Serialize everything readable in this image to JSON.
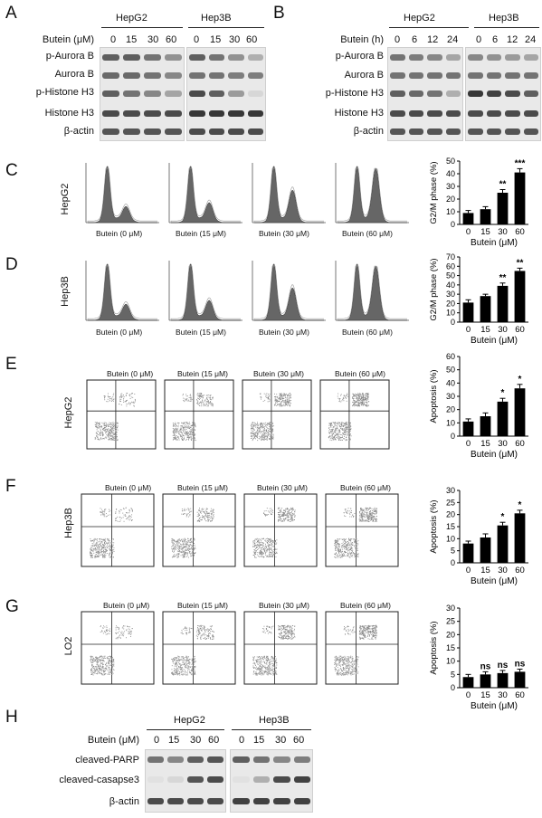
{
  "panels": {
    "A": "A",
    "B": "B",
    "C": "C",
    "D": "D",
    "E": "E",
    "F": "F",
    "G": "G",
    "H": "H"
  },
  "cells": {
    "hepg2": "HepG2",
    "hep3b": "Hep3B",
    "lo2": "LO2"
  },
  "western": {
    "butein_um": "Butein (μM)",
    "butein_h": "Butein (h)",
    "conc": [
      "0",
      "15",
      "30",
      "60"
    ],
    "time": [
      "0",
      "6",
      "12",
      "24"
    ],
    "proteins_ab": [
      "p-Aurora B",
      "Aurora B",
      "p-Histone H3",
      "Histone H3",
      "β-actin"
    ],
    "proteins_h": [
      "cleaved-PARP",
      "cleaved-casapse3",
      "β-actin"
    ]
  },
  "flow": {
    "titles": [
      "Butein (0 μM)",
      "Butein (15 μM)",
      "Butein (30 μM)",
      "Butein (60 μM)"
    ]
  },
  "chart_data": [
    {
      "id": "C",
      "type": "bar",
      "categories": [
        "0",
        "15",
        "30",
        "60"
      ],
      "values": [
        9,
        12,
        25,
        41
      ],
      "errors": [
        2,
        2,
        2.5,
        3
      ],
      "ylabel": "G2/M phase (%)",
      "xlabel": "Butein (μM)",
      "ylim": [
        0,
        50
      ],
      "yticks": [
        "0",
        "10",
        "20",
        "30",
        "40",
        "50"
      ],
      "annotations": [
        "",
        "",
        "**",
        "***"
      ]
    },
    {
      "id": "D",
      "type": "bar",
      "categories": [
        "0",
        "15",
        "30",
        "60"
      ],
      "values": [
        21,
        28,
        39,
        55
      ],
      "errors": [
        3,
        2,
        3,
        3
      ],
      "ylabel": "G2/M phase (%)",
      "xlabel": "Butein (μM)",
      "ylim": [
        0,
        70
      ],
      "yticks": [
        "0",
        "10",
        "20",
        "30",
        "40",
        "50",
        "60",
        "70"
      ],
      "annotations": [
        "",
        "",
        "**",
        "**"
      ]
    },
    {
      "id": "E",
      "type": "bar",
      "categories": [
        "0",
        "15",
        "30",
        "60"
      ],
      "values": [
        11,
        15,
        26,
        36
      ],
      "errors": [
        2,
        2.5,
        2.5,
        3
      ],
      "ylabel": "Apoptosis (%)",
      "xlabel": "Butein (μM)",
      "ylim": [
        0,
        60
      ],
      "yticks": [
        "0",
        "10",
        "20",
        "30",
        "40",
        "50",
        "60"
      ],
      "annotations": [
        "",
        "",
        "*",
        "*"
      ]
    },
    {
      "id": "F",
      "type": "bar",
      "categories": [
        "0",
        "15",
        "30",
        "60"
      ],
      "values": [
        8,
        10.5,
        15.5,
        20.5
      ],
      "errors": [
        1,
        1.5,
        1.3,
        1.3
      ],
      "ylabel": "Apoptosis (%)",
      "xlabel": "Butein (μM)",
      "ylim": [
        0,
        30
      ],
      "yticks": [
        "0",
        "5",
        "10",
        "15",
        "20",
        "25",
        "30"
      ],
      "annotations": [
        "",
        "",
        "*",
        "*"
      ]
    },
    {
      "id": "G",
      "type": "bar",
      "categories": [
        "0",
        "15",
        "30",
        "60"
      ],
      "values": [
        4,
        5,
        5.5,
        6
      ],
      "errors": [
        1,
        1,
        1,
        1
      ],
      "ylabel": "Apoptosis (%)",
      "xlabel": "Butein (μM)",
      "ylim": [
        0,
        30
      ],
      "yticks": [
        "0",
        "5",
        "10",
        "15",
        "20",
        "25",
        "30"
      ],
      "annotations": [
        "",
        "ns",
        "ns",
        "ns"
      ]
    }
  ]
}
